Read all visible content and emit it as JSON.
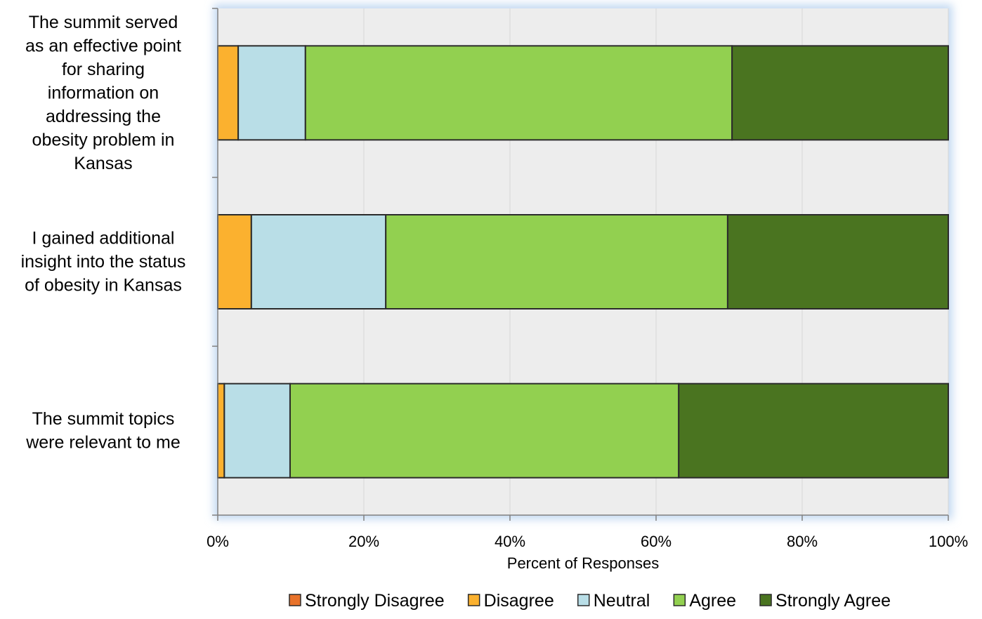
{
  "chart_data": {
    "type": "bar",
    "orientation": "horizontal",
    "stacked": true,
    "categories": [
      "The summit served as an effective point for sharing information on addressing the obesity problem in Kansas",
      "I gained additional insight into the status of obesity in Kansas",
      "The summit topics were relevant to me"
    ],
    "category_lines": [
      [
        "The summit served",
        "as an effective point",
        "for sharing",
        "information on",
        "addressing the",
        "obesity problem in",
        "Kansas"
      ],
      [
        "I gained additional",
        "insight into the status",
        "of obesity in Kansas"
      ],
      [
        "The summit topics",
        "were relevant to me"
      ]
    ],
    "series": [
      {
        "name": "Strongly Disagree",
        "color": "#E8722A",
        "values": [
          0,
          0,
          0
        ]
      },
      {
        "name": "Disagree",
        "color": "#FBB12F",
        "values": [
          2.8,
          4.6,
          0.9
        ]
      },
      {
        "name": "Neutral",
        "color": "#B9DEE7",
        "values": [
          9.2,
          18.4,
          9.0
        ]
      },
      {
        "name": "Agree",
        "color": "#92D050",
        "values": [
          58.4,
          46.8,
          53.2
        ]
      },
      {
        "name": "Strongly Agree",
        "color": "#4A7420",
        "values": [
          29.6,
          30.2,
          36.9
        ]
      }
    ],
    "xlabel": "Percent of Responses",
    "xlim": [
      0,
      100
    ],
    "x_ticks": [
      "0%",
      "20%",
      "40%",
      "60%",
      "80%",
      "100%"
    ],
    "grid": true,
    "legend_position": "bottom"
  }
}
